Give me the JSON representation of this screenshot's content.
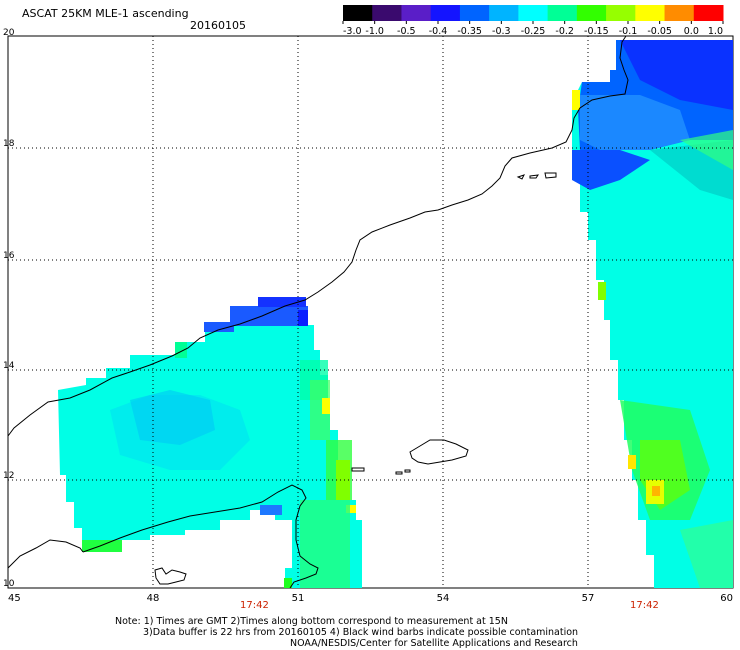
{
  "header": {
    "title": "ASCAT 25KM MLE-1 ascending",
    "date": "20160105"
  },
  "colorbar": {
    "labels": [
      "-3.0",
      "-1.0",
      "-0.5",
      "-0.4",
      "-0.35",
      "-0.3",
      "-0.25",
      "-0.2",
      "-0.15",
      "-0.1",
      "-0.05",
      "0.0",
      "1.0"
    ],
    "colors": [
      "#000000",
      "#3a0a6e",
      "#5a1ec8",
      "#1414ff",
      "#0064ff",
      "#00b4ff",
      "#00ffff",
      "#00ff96",
      "#32ff00",
      "#96ff00",
      "#ffff00",
      "#ff8c00",
      "#ff0000"
    ]
  },
  "map": {
    "lon_ticks": [
      "45",
      "48",
      "51",
      "54",
      "57",
      "60"
    ],
    "lat_ticks": [
      "20",
      "18",
      "16",
      "14",
      "12",
      "10"
    ],
    "pass_times": [
      "17:42",
      "17:42"
    ]
  },
  "notes": {
    "line1": "Note: 1) Times are GMT 2)Times along bottom correspond to measurement at 15N",
    "line2": "3)Data buffer is 22 hrs from 20160105 4) Black wind barbs indicate possible contamination",
    "line3": "NOAA/NESDIS/Center for Satellite Applications and Research"
  }
}
